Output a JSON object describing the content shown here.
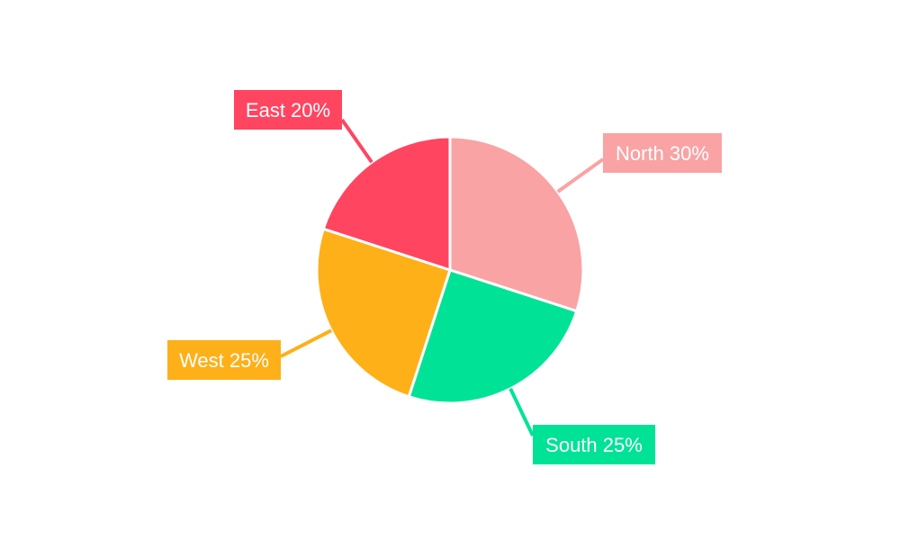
{
  "chart_data": {
    "type": "pie",
    "title": "",
    "start_angle": "12 o'clock, clockwise",
    "slices": [
      {
        "name": "North",
        "value": 30,
        "label": "North 30%",
        "color": "#F9A3A4"
      },
      {
        "name": "South",
        "value": 25,
        "label": "South 25%",
        "color": "#00E396"
      },
      {
        "name": "West",
        "value": 25,
        "label": "West 25%",
        "color": "#FEB019"
      },
      {
        "name": "East",
        "value": 20,
        "label": "East 20%",
        "color": "#FF4560"
      }
    ],
    "legend": "none",
    "data_labels": "outside boxes with leader lines"
  }
}
